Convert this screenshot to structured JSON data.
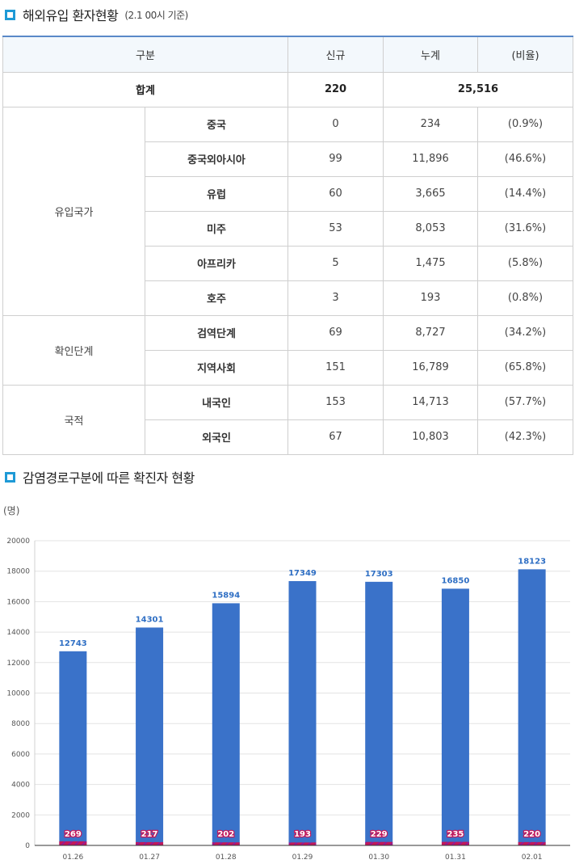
{
  "section1": {
    "title": "해외유입 환자현황",
    "subtitle": "(2.1 00시 기준)"
  },
  "table": {
    "headers": [
      "구분",
      "신규",
      "누계",
      "(비율)"
    ],
    "total": {
      "label": "합계",
      "new": "220",
      "cumulative": "25,516"
    },
    "groups": [
      {
        "name": "유입국가",
        "rows": [
          {
            "label": "중국",
            "new": "0",
            "cumulative": "234",
            "ratio": "(0.9%)"
          },
          {
            "label": "중국외아시아",
            "new": "99",
            "cumulative": "11,896",
            "ratio": "(46.6%)"
          },
          {
            "label": "유럽",
            "new": "60",
            "cumulative": "3,665",
            "ratio": "(14.4%)"
          },
          {
            "label": "미주",
            "new": "53",
            "cumulative": "8,053",
            "ratio": "(31.6%)"
          },
          {
            "label": "아프리카",
            "new": "5",
            "cumulative": "1,475",
            "ratio": "(5.8%)"
          },
          {
            "label": "호주",
            "new": "3",
            "cumulative": "193",
            "ratio": "(0.8%)"
          }
        ]
      },
      {
        "name": "확인단계",
        "rows": [
          {
            "label": "검역단계",
            "new": "69",
            "cumulative": "8,727",
            "ratio": "(34.2%)"
          },
          {
            "label": "지역사회",
            "new": "151",
            "cumulative": "16,789",
            "ratio": "(65.8%)"
          }
        ]
      },
      {
        "name": "국적",
        "rows": [
          {
            "label": "내국인",
            "new": "153",
            "cumulative": "14,713",
            "ratio": "(57.7%)"
          },
          {
            "label": "외국인",
            "new": "67",
            "cumulative": "10,803",
            "ratio": "(42.3%)"
          }
        ]
      }
    ]
  },
  "section2": {
    "title": "감염경로구분에 따른 확진자 현황"
  },
  "colors": {
    "accent": "#1e9ad6",
    "bar_main": "#3a72c9",
    "bar_small": "#c2185b",
    "label_blue": "#2f6fc4"
  },
  "chart_data": {
    "type": "bar",
    "ylabel": "(명)",
    "ylim": [
      0,
      20000
    ],
    "yticks": [
      0,
      2000,
      4000,
      6000,
      8000,
      10000,
      12000,
      14000,
      16000,
      18000,
      20000
    ],
    "categories": [
      "01.26",
      "01.27",
      "01.28",
      "01.29",
      "01.30",
      "01.31",
      "02.01"
    ],
    "series": [
      {
        "values": [
          12743,
          14301,
          15894,
          17349,
          17303,
          16850,
          18123
        ],
        "color": "#3a72c9"
      },
      {
        "values": [
          269,
          217,
          202,
          193,
          229,
          235,
          220
        ],
        "color": "#c2185b"
      }
    ],
    "grid": true
  }
}
